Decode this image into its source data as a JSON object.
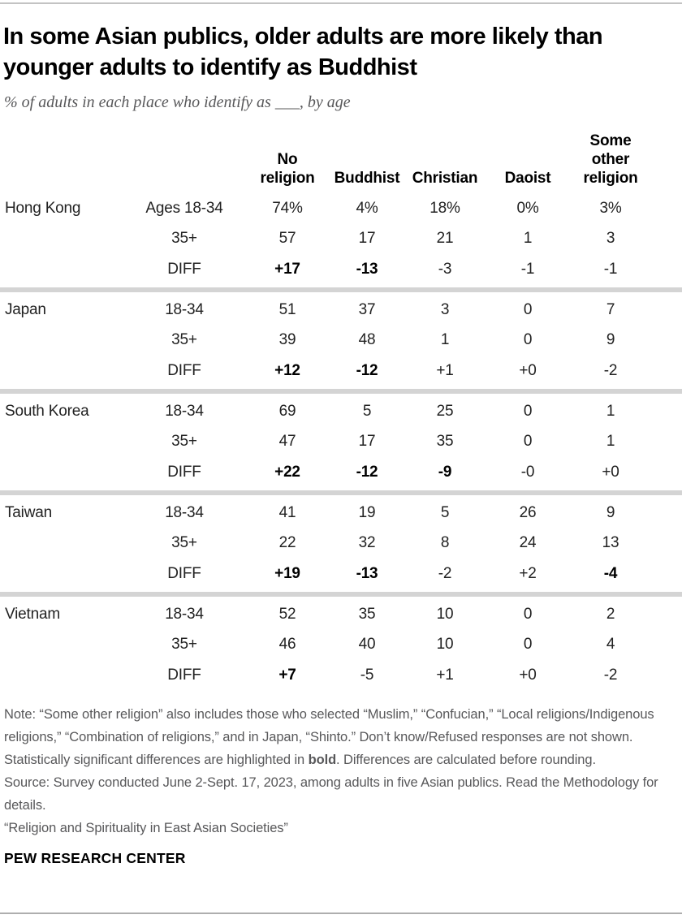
{
  "header": {
    "title": "In some Asian publics, older adults are more likely than younger adults to identify as Buddhist",
    "subtitle": "% of adults in each place who identify as ___, by age"
  },
  "table": {
    "column_headers": [
      "No\nreligion",
      "Buddhist",
      "Christian",
      "Daoist",
      "Some\nother\nreligion"
    ]
  },
  "chart_data": {
    "type": "table",
    "title": "In some Asian publics, older adults are more likely than younger adults to identify as Buddhist",
    "subtitle": "% of adults in each place who identify as ___, by age",
    "columns": [
      "No religion",
      "Buddhist",
      "Christian",
      "Daoist",
      "Some other religion"
    ],
    "row_groups": [
      {
        "place": "Hong Kong",
        "rows": [
          {
            "age_label": "Ages 18-34",
            "cells": [
              "74%",
              "4%",
              "18%",
              "0%",
              "3%"
            ],
            "bold": [
              false,
              false,
              false,
              false,
              false
            ]
          },
          {
            "age_label": "35+",
            "cells": [
              "57",
              "17",
              "21",
              "1",
              "3"
            ],
            "bold": [
              false,
              false,
              false,
              false,
              false
            ]
          },
          {
            "age_label": "DIFF",
            "cells": [
              "+17",
              "-13",
              "-3",
              "-1",
              "-1"
            ],
            "bold": [
              true,
              true,
              false,
              false,
              false
            ]
          }
        ]
      },
      {
        "place": "Japan",
        "rows": [
          {
            "age_label": "18-34",
            "cells": [
              "51",
              "37",
              "3",
              "0",
              "7"
            ],
            "bold": [
              false,
              false,
              false,
              false,
              false
            ]
          },
          {
            "age_label": "35+",
            "cells": [
              "39",
              "48",
              "1",
              "0",
              "9"
            ],
            "bold": [
              false,
              false,
              false,
              false,
              false
            ]
          },
          {
            "age_label": "DIFF",
            "cells": [
              "+12",
              "-12",
              "+1",
              "+0",
              "-2"
            ],
            "bold": [
              true,
              true,
              false,
              false,
              false
            ]
          }
        ]
      },
      {
        "place": "South Korea",
        "rows": [
          {
            "age_label": "18-34",
            "cells": [
              "69",
              "5",
              "25",
              "0",
              "1"
            ],
            "bold": [
              false,
              false,
              false,
              false,
              false
            ]
          },
          {
            "age_label": "35+",
            "cells": [
              "47",
              "17",
              "35",
              "0",
              "1"
            ],
            "bold": [
              false,
              false,
              false,
              false,
              false
            ]
          },
          {
            "age_label": "DIFF",
            "cells": [
              "+22",
              "-12",
              "-9",
              "-0",
              "+0"
            ],
            "bold": [
              true,
              true,
              true,
              false,
              false
            ]
          }
        ]
      },
      {
        "place": "Taiwan",
        "rows": [
          {
            "age_label": "18-34",
            "cells": [
              "41",
              "19",
              "5",
              "26",
              "9"
            ],
            "bold": [
              false,
              false,
              false,
              false,
              false
            ]
          },
          {
            "age_label": "35+",
            "cells": [
              "22",
              "32",
              "8",
              "24",
              "13"
            ],
            "bold": [
              false,
              false,
              false,
              false,
              false
            ]
          },
          {
            "age_label": "DIFF",
            "cells": [
              "+19",
              "-13",
              "-2",
              "+2",
              "-4"
            ],
            "bold": [
              true,
              true,
              false,
              false,
              true
            ]
          }
        ]
      },
      {
        "place": "Vietnam",
        "rows": [
          {
            "age_label": "18-34",
            "cells": [
              "52",
              "35",
              "10",
              "0",
              "2"
            ],
            "bold": [
              false,
              false,
              false,
              false,
              false
            ]
          },
          {
            "age_label": "35+",
            "cells": [
              "46",
              "40",
              "10",
              "0",
              "4"
            ],
            "bold": [
              false,
              false,
              false,
              false,
              false
            ]
          },
          {
            "age_label": "DIFF",
            "cells": [
              "+7",
              "-5",
              "+1",
              "+0",
              "-2"
            ],
            "bold": [
              true,
              false,
              false,
              false,
              false
            ]
          }
        ]
      }
    ]
  },
  "footer": {
    "note_segments": [
      {
        "t": "Note: “Some other religion” also includes those who selected “Muslim,” “Confucian,” “Local religions/Indigenous religions,” “Combination of religions,” and in Japan, “Shinto.” Don’t know/Refused responses are not shown. Statistically significant differences are highlighted in ",
        "b": false
      },
      {
        "t": "bold",
        "b": true
      },
      {
        "t": ". Differences are calculated before rounding.",
        "b": false
      }
    ],
    "source": "Source: Survey conducted June 2-Sept. 17, 2023, among adults in five Asian publics. Read the Methodology for details.",
    "citation": "“Religion and Spirituality in East Asian Societies”",
    "brand": "PEW RESEARCH CENTER"
  },
  "colors": {
    "title": "#000000",
    "subtitle_gray": "#58585a",
    "note_gray": "#58585a",
    "separator": "#d4d4d4",
    "top_rule": "#c3c3c3",
    "bottom_rule": "#aeaeae",
    "value_text": "#222222",
    "bold_value_text": "#000000"
  }
}
